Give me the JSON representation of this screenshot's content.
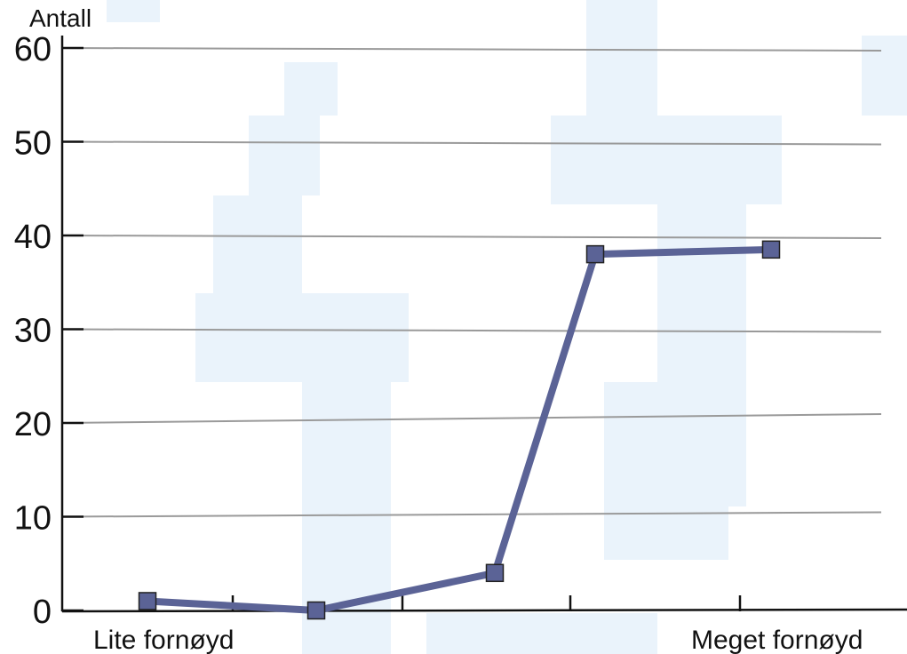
{
  "chart_data": {
    "type": "line",
    "title": "",
    "ylabel": "Antall",
    "xlabel": "",
    "ylim": [
      0,
      60
    ],
    "yticks": [
      0,
      10,
      20,
      30,
      40,
      50,
      60
    ],
    "x": [
      1,
      2,
      3,
      4,
      5
    ],
    "category_labels": {
      "left": "Lite fornøyd",
      "right": "Meget fornøyd"
    },
    "series": [
      {
        "values": [
          1,
          0,
          4,
          38,
          38.5
        ]
      }
    ],
    "grid": true,
    "legend": "none"
  },
  "colors": {
    "series": "#5b6396",
    "grid": "#9a9a9a",
    "axis": "#111111",
    "watermark": "#eaf3fb"
  }
}
